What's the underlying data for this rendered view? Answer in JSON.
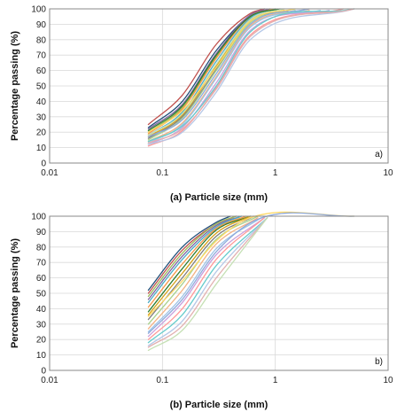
{
  "chart_data": [
    {
      "type": "line",
      "xscale": "log",
      "xlim": [
        0.01,
        10
      ],
      "ylim": [
        0,
        100
      ],
      "xticks": [
        0.01,
        0.1,
        1,
        10
      ],
      "xtick_labels": [
        "0.01",
        "0.1",
        "1",
        "10"
      ],
      "yticks": [
        0,
        10,
        20,
        30,
        40,
        50,
        60,
        70,
        80,
        90,
        100
      ],
      "ytick_labels": [
        "0",
        "10",
        "20",
        "30",
        "40",
        "50",
        "60",
        "70",
        "80",
        "90",
        "100"
      ],
      "ylabel": "Percentage passing (%)",
      "xlabel": "(a) Particle size (mm)",
      "panel_label": "a)",
      "grid": true,
      "colors": [
        "#1f4e79",
        "#c0504d",
        "#9bbb59",
        "#8064a2",
        "#4bacc6",
        "#f79646",
        "#2e7d32",
        "#d4a017",
        "#7f7f7f",
        "#a9d18e",
        "#f4b183",
        "#9dc3e6",
        "#c9a0dc",
        "#ff9999",
        "#66cccc",
        "#b4c7e7",
        "#e2b0b0",
        "#c5e0b4",
        "#ffd966",
        "#8faadc"
      ],
      "series": [
        {
          "values": [
            [
              0.075,
              23
            ],
            [
              0.15,
              40
            ],
            [
              0.3,
              73
            ],
            [
              0.6,
              96
            ],
            [
              0.8,
              100
            ]
          ]
        },
        {
          "values": [
            [
              0.075,
              25
            ],
            [
              0.15,
              44
            ],
            [
              0.3,
              77
            ],
            [
              0.6,
              97
            ],
            [
              0.8,
              100
            ]
          ]
        },
        {
          "values": [
            [
              0.075,
              20
            ],
            [
              0.15,
              36
            ],
            [
              0.3,
              69
            ],
            [
              0.6,
              95
            ],
            [
              0.9,
              100
            ]
          ]
        },
        {
          "values": [
            [
              0.075,
              22
            ],
            [
              0.15,
              38
            ],
            [
              0.3,
              71
            ],
            [
              0.6,
              96
            ],
            [
              0.9,
              100
            ]
          ]
        },
        {
          "values": [
            [
              0.075,
              18
            ],
            [
              0.15,
              33
            ],
            [
              0.3,
              66
            ],
            [
              0.6,
              94
            ],
            [
              1.0,
              100
            ]
          ]
        },
        {
          "values": [
            [
              0.075,
              19
            ],
            [
              0.15,
              35
            ],
            [
              0.3,
              68
            ],
            [
              0.6,
              95
            ],
            [
              1.0,
              100
            ]
          ]
        },
        {
          "values": [
            [
              0.075,
              21
            ],
            [
              0.15,
              37
            ],
            [
              0.3,
              70
            ],
            [
              0.6,
              95
            ],
            [
              1.1,
              100
            ]
          ]
        },
        {
          "values": [
            [
              0.075,
              17
            ],
            [
              0.15,
              31
            ],
            [
              0.3,
              63
            ],
            [
              0.6,
              93
            ],
            [
              1.2,
              99
            ]
          ]
        },
        {
          "values": [
            [
              0.075,
              16
            ],
            [
              0.15,
              30
            ],
            [
              0.3,
              61
            ],
            [
              0.6,
              92
            ],
            [
              1.3,
              99
            ]
          ]
        },
        {
          "values": [
            [
              0.075,
              15
            ],
            [
              0.15,
              29
            ],
            [
              0.3,
              60
            ],
            [
              0.6,
              91
            ],
            [
              1.5,
              99
            ]
          ]
        },
        {
          "values": [
            [
              0.075,
              14
            ],
            [
              0.15,
              26
            ],
            [
              0.3,
              56
            ],
            [
              0.6,
              89
            ],
            [
              2.0,
              99
            ]
          ]
        },
        {
          "values": [
            [
              0.075,
              13
            ],
            [
              0.15,
              25
            ],
            [
              0.3,
              55
            ],
            [
              0.6,
              88
            ],
            [
              2.5,
              99
            ]
          ]
        },
        {
          "values": [
            [
              0.075,
              12
            ],
            [
              0.15,
              23
            ],
            [
              0.3,
              52
            ],
            [
              0.6,
              86
            ],
            [
              3.0,
              99
            ]
          ]
        },
        {
          "values": [
            [
              0.075,
              11
            ],
            [
              0.15,
              21
            ],
            [
              0.3,
              49
            ],
            [
              0.6,
              83
            ],
            [
              4.0,
              100
            ]
          ]
        },
        {
          "values": [
            [
              0.075,
              14
            ],
            [
              0.15,
              24
            ],
            [
              0.3,
              50
            ],
            [
              0.6,
              85
            ],
            [
              5.0,
              100
            ]
          ]
        },
        {
          "values": [
            [
              0.075,
              12
            ],
            [
              0.15,
              20
            ],
            [
              0.3,
              46
            ],
            [
              0.6,
              80
            ],
            [
              5.0,
              100
            ]
          ]
        },
        {
          "values": [
            [
              0.075,
              13
            ],
            [
              0.15,
              22
            ],
            [
              0.3,
              48
            ],
            [
              0.6,
              82
            ],
            [
              5.0,
              100
            ]
          ]
        },
        {
          "values": [
            [
              0.075,
              18
            ],
            [
              0.15,
              32
            ],
            [
              0.3,
              64
            ],
            [
              0.6,
              93
            ],
            [
              1.2,
              100
            ]
          ]
        },
        {
          "values": [
            [
              0.075,
              20
            ],
            [
              0.15,
              34
            ],
            [
              0.3,
              62
            ],
            [
              0.6,
              92
            ],
            [
              1.5,
              100
            ]
          ]
        },
        {
          "values": [
            [
              0.075,
              17
            ],
            [
              0.15,
              28
            ],
            [
              0.3,
              58
            ],
            [
              0.6,
              90
            ],
            [
              2.0,
              100
            ]
          ]
        }
      ]
    },
    {
      "type": "line",
      "xscale": "log",
      "xlim": [
        0.01,
        10
      ],
      "ylim": [
        0,
        100
      ],
      "xticks": [
        0.01,
        0.1,
        1,
        10
      ],
      "xtick_labels": [
        "0.01",
        "0.1",
        "1",
        "10"
      ],
      "yticks": [
        0,
        10,
        20,
        30,
        40,
        50,
        60,
        70,
        80,
        90,
        100
      ],
      "ytick_labels": [
        "0",
        "10",
        "20",
        "30",
        "40",
        "50",
        "60",
        "70",
        "80",
        "90",
        "100"
      ],
      "ylabel": "Percentage passing (%)",
      "xlabel": "(b) Particle size (mm)",
      "panel_label": "b)",
      "grid": true,
      "colors": [
        "#1f4e79",
        "#c0504d",
        "#9bbb59",
        "#8064a2",
        "#4bacc6",
        "#f79646",
        "#2e7d32",
        "#d4a017",
        "#7f7f7f",
        "#a9d18e",
        "#f4b183",
        "#9dc3e6",
        "#c9a0dc",
        "#ff9999",
        "#66cccc",
        "#b4c7e7",
        "#e2b0b0",
        "#c5e0b4",
        "#ffd966",
        "#8faadc"
      ],
      "series": [
        {
          "values": [
            [
              0.075,
              52
            ],
            [
              0.15,
              80
            ],
            [
              0.3,
              96
            ],
            [
              0.4,
              100
            ]
          ]
        },
        {
          "values": [
            [
              0.075,
              50
            ],
            [
              0.15,
              78
            ],
            [
              0.3,
              95
            ],
            [
              0.45,
              100
            ]
          ]
        },
        {
          "values": [
            [
              0.075,
              48
            ],
            [
              0.15,
              76
            ],
            [
              0.3,
              95
            ],
            [
              0.45,
              100
            ]
          ]
        },
        {
          "values": [
            [
              0.075,
              46
            ],
            [
              0.15,
              74
            ],
            [
              0.3,
              94
            ],
            [
              0.5,
              100
            ]
          ]
        },
        {
          "values": [
            [
              0.075,
              44
            ],
            [
              0.15,
              72
            ],
            [
              0.3,
              93
            ],
            [
              0.5,
              100
            ]
          ]
        },
        {
          "values": [
            [
              0.075,
              41
            ],
            [
              0.15,
              69
            ],
            [
              0.3,
              92
            ],
            [
              0.55,
              100
            ]
          ]
        },
        {
          "values": [
            [
              0.075,
              38
            ],
            [
              0.15,
              66
            ],
            [
              0.3,
              91
            ],
            [
              0.6,
              100
            ]
          ]
        },
        {
          "values": [
            [
              0.075,
              36
            ],
            [
              0.15,
              63
            ],
            [
              0.3,
              89
            ],
            [
              0.6,
              100
            ]
          ]
        },
        {
          "values": [
            [
              0.075,
              33
            ],
            [
              0.15,
              60
            ],
            [
              0.3,
              87
            ],
            [
              0.65,
              100
            ]
          ]
        },
        {
          "values": [
            [
              0.075,
              30
            ],
            [
              0.15,
              56
            ],
            [
              0.3,
              85
            ],
            [
              0.7,
              100
            ]
          ]
        },
        {
          "values": [
            [
              0.075,
              27
            ],
            [
              0.15,
              52
            ],
            [
              0.3,
              82
            ],
            [
              0.7,
              99
            ]
          ]
        },
        {
          "values": [
            [
              0.075,
              25
            ],
            [
              0.15,
              48
            ],
            [
              0.3,
              79
            ],
            [
              0.75,
              99
            ]
          ]
        },
        {
          "values": [
            [
              0.075,
              22
            ],
            [
              0.15,
              44
            ],
            [
              0.3,
              75
            ],
            [
              0.8,
              99
            ]
          ]
        },
        {
          "values": [
            [
              0.075,
              20
            ],
            [
              0.15,
              40
            ],
            [
              0.3,
              72
            ],
            [
              0.8,
              99
            ]
          ]
        },
        {
          "values": [
            [
              0.075,
              18
            ],
            [
              0.15,
              36
            ],
            [
              0.3,
              68
            ],
            [
              0.85,
              99
            ]
          ]
        },
        {
          "values": [
            [
              0.075,
              16
            ],
            [
              0.15,
              32
            ],
            [
              0.3,
              64
            ],
            [
              0.85,
              99
            ]
          ]
        },
        {
          "values": [
            [
              0.075,
              15
            ],
            [
              0.15,
              29
            ],
            [
              0.3,
              60
            ],
            [
              0.85,
              99
            ]
          ]
        },
        {
          "values": [
            [
              0.075,
              13
            ],
            [
              0.15,
              26
            ],
            [
              0.3,
              56
            ],
            [
              0.85,
              99
            ]
          ]
        },
        {
          "values": [
            [
              0.075,
              35
            ],
            [
              0.15,
              58
            ],
            [
              0.3,
              84
            ],
            [
              0.6,
              99
            ],
            [
              5.0,
              100
            ]
          ]
        },
        {
          "values": [
            [
              0.075,
              24
            ],
            [
              0.15,
              46
            ],
            [
              0.3,
              77
            ],
            [
              0.7,
              98
            ],
            [
              5.0,
              100
            ]
          ]
        }
      ]
    }
  ]
}
